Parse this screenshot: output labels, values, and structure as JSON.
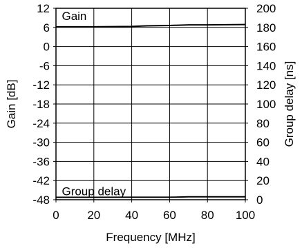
{
  "chart_data": {
    "type": "line",
    "xlabel": "Frequency [MHz]",
    "ylabel_left": "Gain [dB]",
    "ylabel_right": "Group delay [ns]",
    "xlim": [
      0,
      100
    ],
    "ylim_left": [
      -48,
      12
    ],
    "ylim_right": [
      0,
      200
    ],
    "x_ticks": [
      0,
      20,
      40,
      60,
      80,
      100
    ],
    "y_left_ticks": [
      12,
      6,
      0,
      -6,
      -12,
      -18,
      -24,
      -30,
      -36,
      -42,
      -48
    ],
    "y_right_ticks": [
      200,
      180,
      160,
      140,
      120,
      100,
      80,
      60,
      40,
      20,
      0
    ],
    "grid": true,
    "annotations": [
      {
        "text": "Gain",
        "x": 2,
        "y": 9.6,
        "axis": "left"
      },
      {
        "text": "Group delay",
        "x": 2,
        "y": -45.3,
        "axis": "left"
      }
    ],
    "series": [
      {
        "axis": "left",
        "x": [
          0,
          20,
          40,
          48,
          60,
          70,
          80,
          100
        ],
        "y": [
          6.2,
          6.2,
          6.3,
          6.5,
          6.6,
          6.8,
          6.8,
          6.9
        ]
      },
      {
        "axis": "right",
        "x": [
          0,
          20,
          40,
          60,
          70,
          80,
          100
        ],
        "y": [
          2.5,
          2.5,
          2.6,
          2.6,
          3.0,
          3.0,
          3.0
        ]
      }
    ]
  }
}
